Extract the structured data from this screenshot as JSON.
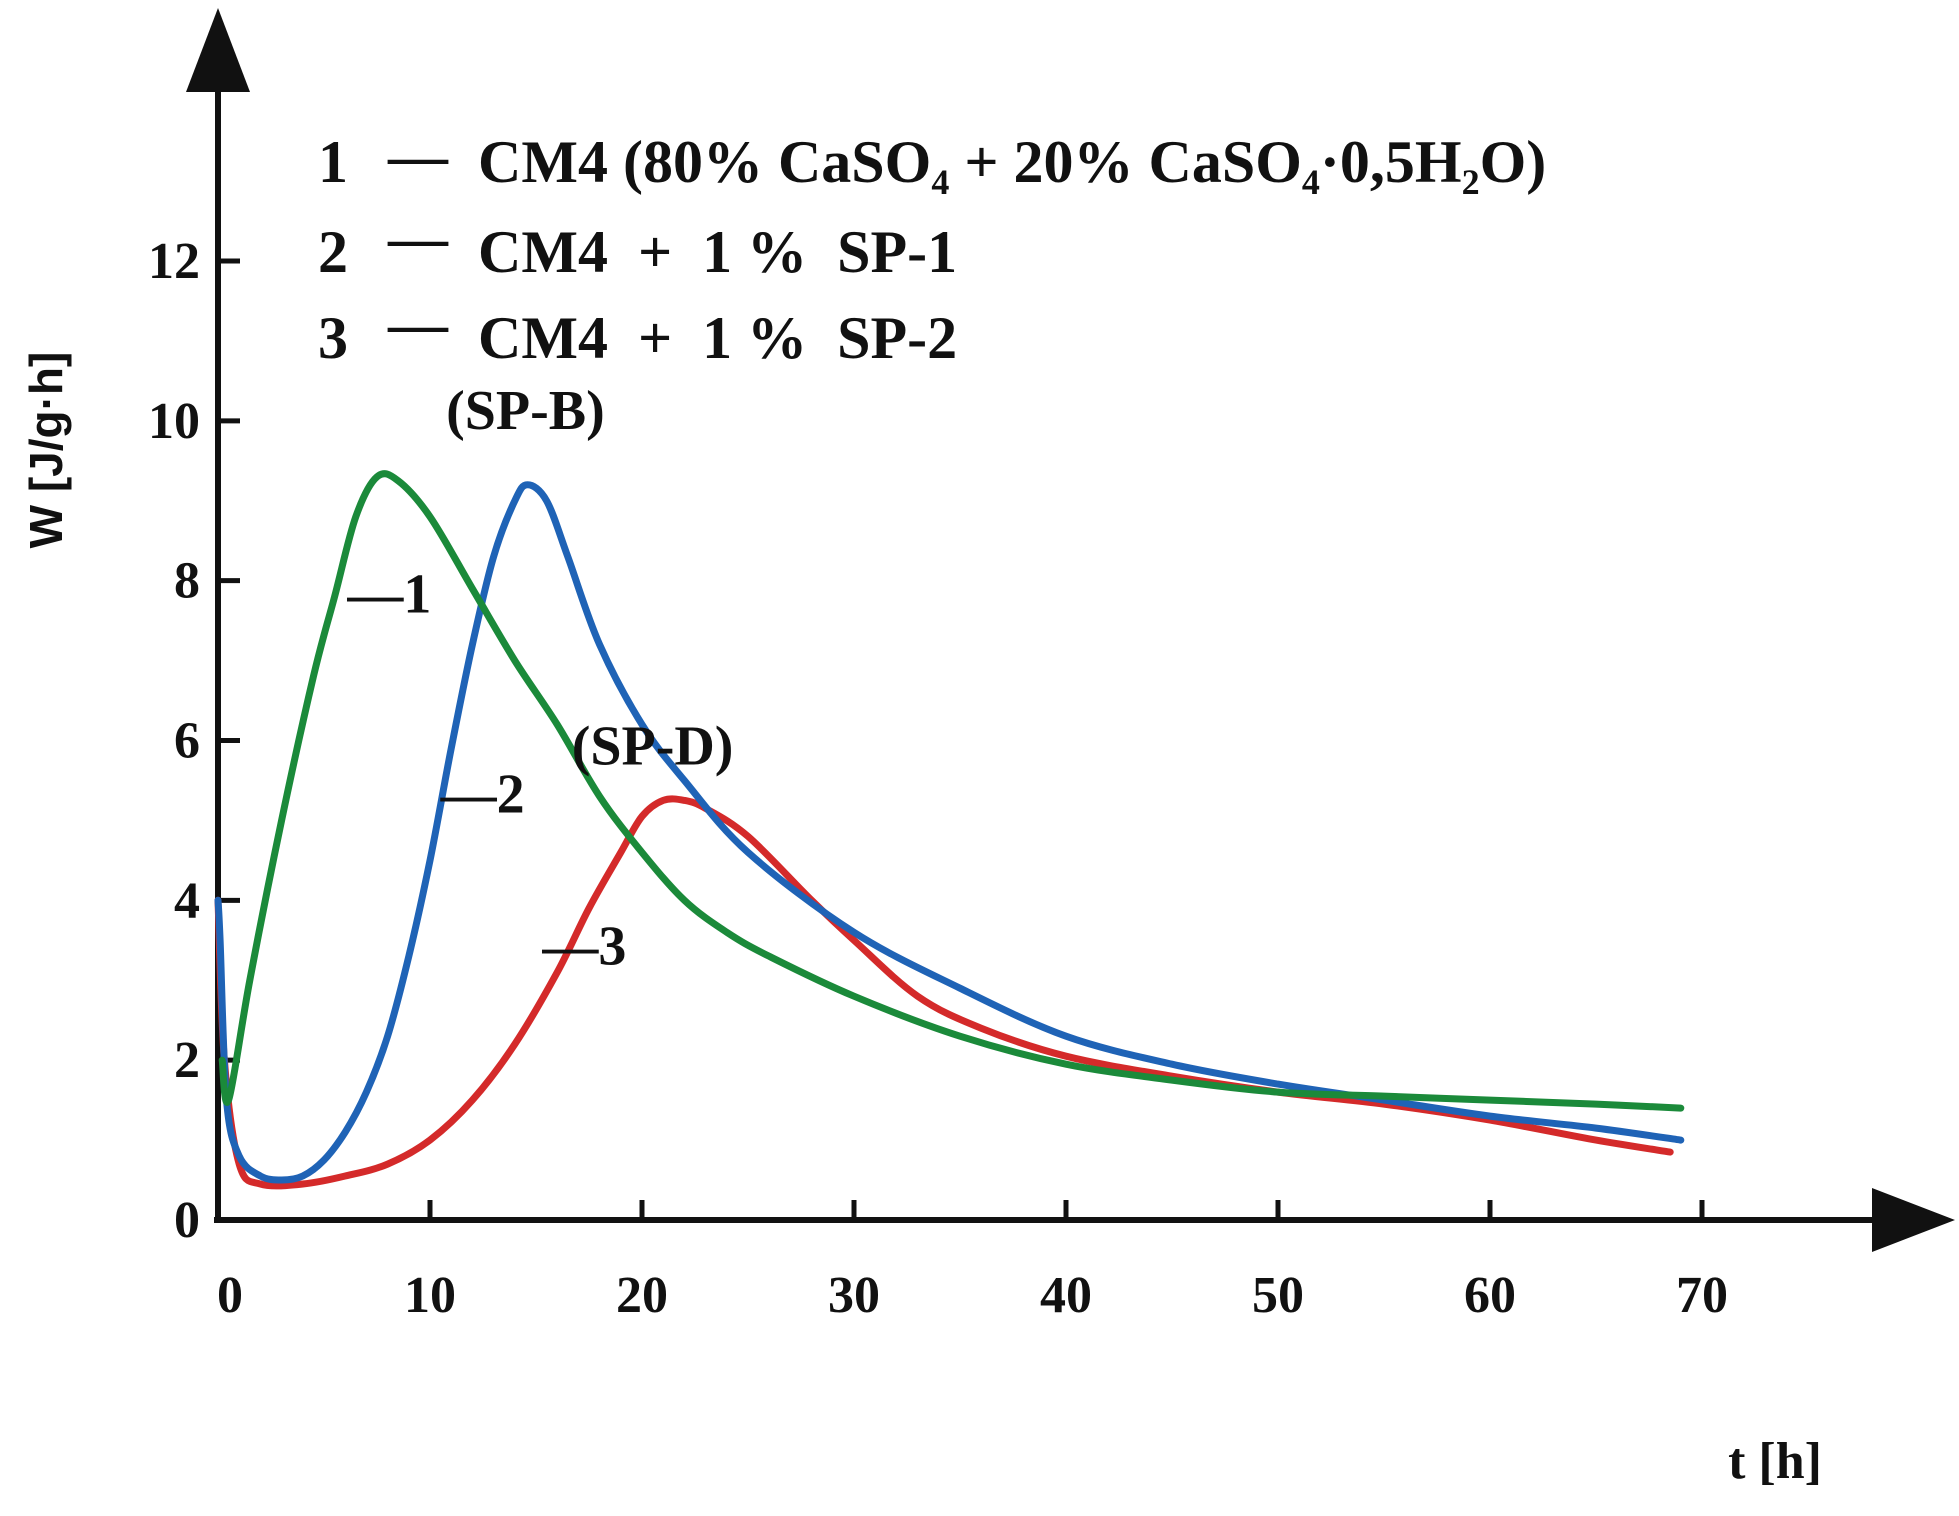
{
  "chart_data": {
    "type": "line",
    "title": "",
    "xlabel": "t [h]",
    "ylabel": "W [J/g·h]",
    "xlim": [
      0,
      75
    ],
    "ylim": [
      0,
      14
    ],
    "xticks": [
      0,
      10,
      20,
      30,
      40,
      50,
      60,
      70
    ],
    "yticks": [
      0,
      2,
      4,
      6,
      8,
      10,
      12
    ],
    "grid": false,
    "legend_placement": "top-left",
    "legend": [
      {
        "number": "1",
        "dash": "—",
        "label_main": "CM4  (80% CaSO",
        "sub1": "4",
        "label_mid": " + 20% CaSO",
        "sub2": "4",
        "label_mid2": "·0,5H",
        "sub3": "2",
        "label_end": "O)"
      },
      {
        "number": "2",
        "dash": "—",
        "label": "CM4  +  1 %  SP-1"
      },
      {
        "number": "3",
        "dash": "—",
        "label": "CM4  +  1 %  SP-2"
      }
    ],
    "annotations": [
      {
        "text": "(SP-B)",
        "x": 14.5,
        "y": 9.9
      },
      {
        "text": "(SP-D)",
        "x": 20.5,
        "y": 5.7
      }
    ],
    "series": [
      {
        "name": "1",
        "color": "#1b8a3a",
        "curve_label": "—1",
        "label_at": [
          6.1,
          7.6
        ],
        "points": [
          [
            0.2,
            2.0
          ],
          [
            0.5,
            1.5
          ],
          [
            1.5,
            3.0
          ],
          [
            3,
            5.0
          ],
          [
            4.5,
            6.8
          ],
          [
            5.5,
            7.8
          ],
          [
            6.5,
            8.8
          ],
          [
            7.5,
            9.3
          ],
          [
            8.5,
            9.25
          ],
          [
            10,
            8.8
          ],
          [
            12,
            7.9
          ],
          [
            14,
            7.0
          ],
          [
            16,
            6.2
          ],
          [
            18,
            5.3
          ],
          [
            20,
            4.6
          ],
          [
            22,
            4.0
          ],
          [
            24,
            3.6
          ],
          [
            26,
            3.3
          ],
          [
            30,
            2.8
          ],
          [
            35,
            2.3
          ],
          [
            40,
            1.95
          ],
          [
            45,
            1.75
          ],
          [
            50,
            1.6
          ],
          [
            55,
            1.55
          ],
          [
            60,
            1.5
          ],
          [
            65,
            1.45
          ],
          [
            69,
            1.4
          ]
        ]
      },
      {
        "name": "2",
        "color": "#1f63b6",
        "curve_label": "—2",
        "label_at": [
          10.5,
          5.1
        ],
        "points": [
          [
            0.0,
            4.0
          ],
          [
            0.1,
            3.5
          ],
          [
            0.4,
            1.5
          ],
          [
            1,
            0.8
          ],
          [
            2,
            0.55
          ],
          [
            3,
            0.5
          ],
          [
            4,
            0.55
          ],
          [
            5,
            0.75
          ],
          [
            6,
            1.1
          ],
          [
            7,
            1.6
          ],
          [
            8,
            2.3
          ],
          [
            9,
            3.3
          ],
          [
            10,
            4.5
          ],
          [
            11,
            5.9
          ],
          [
            12,
            7.2
          ],
          [
            13,
            8.3
          ],
          [
            14,
            9.0
          ],
          [
            14.6,
            9.2
          ],
          [
            15.5,
            9.0
          ],
          [
            16.5,
            8.3
          ],
          [
            18,
            7.2
          ],
          [
            20,
            6.2
          ],
          [
            22,
            5.5
          ],
          [
            25,
            4.6
          ],
          [
            30,
            3.6
          ],
          [
            35,
            2.9
          ],
          [
            40,
            2.3
          ],
          [
            45,
            1.95
          ],
          [
            50,
            1.7
          ],
          [
            55,
            1.5
          ],
          [
            60,
            1.3
          ],
          [
            65,
            1.15
          ],
          [
            69,
            1.0
          ]
        ]
      },
      {
        "name": "3",
        "color": "#d42a2a",
        "curve_label": "—3",
        "label_at": [
          15.3,
          3.2
        ],
        "points": [
          [
            0.0,
            4.0
          ],
          [
            0.3,
            2.0
          ],
          [
            1,
            0.7
          ],
          [
            2,
            0.45
          ],
          [
            4,
            0.45
          ],
          [
            6,
            0.55
          ],
          [
            8,
            0.7
          ],
          [
            10,
            1.0
          ],
          [
            12,
            1.5
          ],
          [
            14,
            2.2
          ],
          [
            16,
            3.1
          ],
          [
            17.5,
            3.9
          ],
          [
            19,
            4.6
          ],
          [
            20,
            5.05
          ],
          [
            21,
            5.25
          ],
          [
            22,
            5.25
          ],
          [
            23,
            5.15
          ],
          [
            25,
            4.8
          ],
          [
            28,
            4.0
          ],
          [
            30,
            3.5
          ],
          [
            33,
            2.8
          ],
          [
            36,
            2.4
          ],
          [
            40,
            2.05
          ],
          [
            45,
            1.8
          ],
          [
            50,
            1.6
          ],
          [
            55,
            1.45
          ],
          [
            60,
            1.25
          ],
          [
            65,
            1.0
          ],
          [
            68.5,
            0.85
          ]
        ]
      }
    ]
  }
}
